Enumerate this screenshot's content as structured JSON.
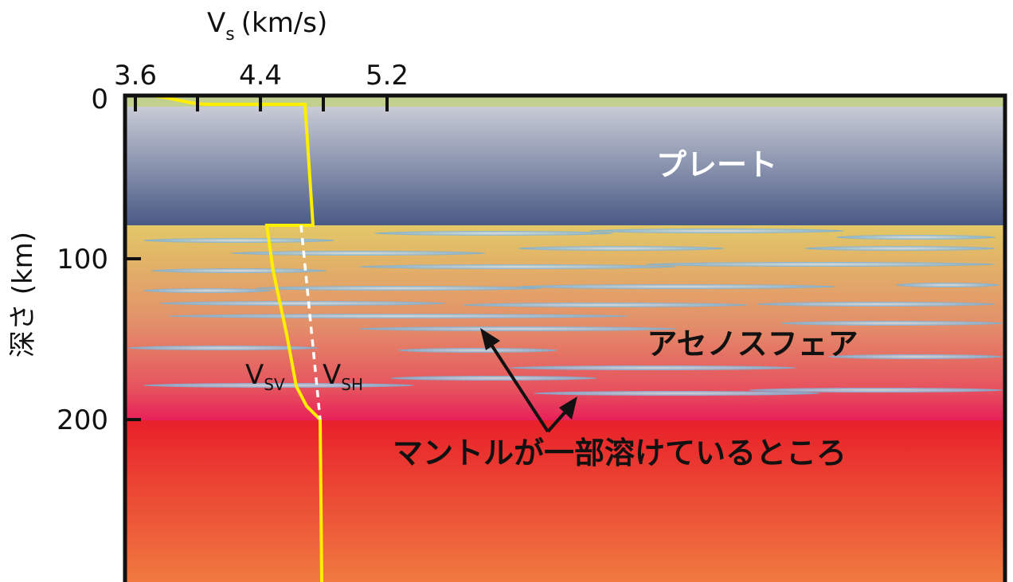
{
  "x_axis": {
    "label": {
      "symbol": "V",
      "subscript": "s",
      "unit": "(km/s)"
    },
    "ticks": [
      "3.6",
      "4.4",
      "5.2"
    ]
  },
  "y_axis": {
    "label": "深さ (km)",
    "ticks": [
      "0",
      "100",
      "200"
    ]
  },
  "regions": {
    "plate": "プレート",
    "asthenosphere": "アセノスフェア"
  },
  "curves": {
    "vsv": {
      "symbol": "V",
      "subscript": "SV"
    },
    "vsh": {
      "symbol": "V",
      "subscript": "SH"
    }
  },
  "annotation": "マントルが一部溶けているところ"
}
